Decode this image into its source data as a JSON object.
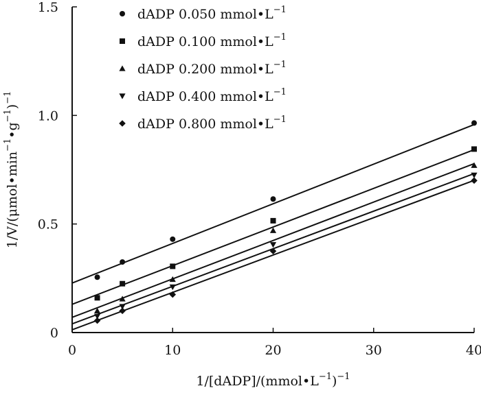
{
  "chart_data": {
    "type": "scatter",
    "title": "",
    "xlabel": {
      "main": "1/[dADP]/(mmol•L",
      "sup": "−1",
      "tail": ")",
      "sup2": "−1"
    },
    "ylabel": {
      "a": "1/V/(μmol•min",
      "a_sup": "−1",
      "b": "•g",
      "b_sup": "−1",
      "c": ")",
      "c_sup": "−1"
    },
    "xlim": [
      0,
      40
    ],
    "ylim": [
      0,
      1.5
    ],
    "x_ticks": [
      0,
      10,
      20,
      30,
      40
    ],
    "x_tick_labels": [
      "0",
      "10",
      "20",
      "30",
      "40"
    ],
    "y_ticks": [
      0,
      0.5,
      1.0,
      1.5
    ],
    "y_tick_labels": [
      "0",
      "0.5",
      "1.0",
      "1.5"
    ],
    "grid": false,
    "legend_position": "top-left",
    "legend_sup": "−1",
    "x": [
      2.5,
      5,
      10,
      20,
      40
    ],
    "series": [
      {
        "name": "dADP 0.050 mmol•L",
        "marker": "circle",
        "values": [
          0.255,
          0.325,
          0.43,
          0.615,
          0.965
        ],
        "fit": {
          "intercept": 0.228,
          "slope": 0.01825
        }
      },
      {
        "name": "dADP 0.100 mmol•L",
        "marker": "square",
        "values": [
          0.16,
          0.225,
          0.305,
          0.515,
          0.845
        ],
        "fit": {
          "intercept": 0.13,
          "slope": 0.0178
        }
      },
      {
        "name": "dADP 0.200 mmol•L",
        "marker": "triangle-up",
        "values": [
          0.1,
          0.155,
          0.245,
          0.47,
          0.77
        ],
        "fit": {
          "intercept": 0.07,
          "slope": 0.0177
        }
      },
      {
        "name": "dADP 0.400 mmol•L",
        "marker": "triangle-down",
        "values": [
          0.075,
          0.12,
          0.21,
          0.405,
          0.725
        ],
        "fit": {
          "intercept": 0.04,
          "slope": 0.0173
        }
      },
      {
        "name": "dADP 0.800 mmol•L",
        "marker": "diamond",
        "values": [
          0.055,
          0.1,
          0.175,
          0.375,
          0.7
        ],
        "fit": {
          "intercept": 0.013,
          "slope": 0.0172
        }
      }
    ],
    "color": "#111111"
  }
}
